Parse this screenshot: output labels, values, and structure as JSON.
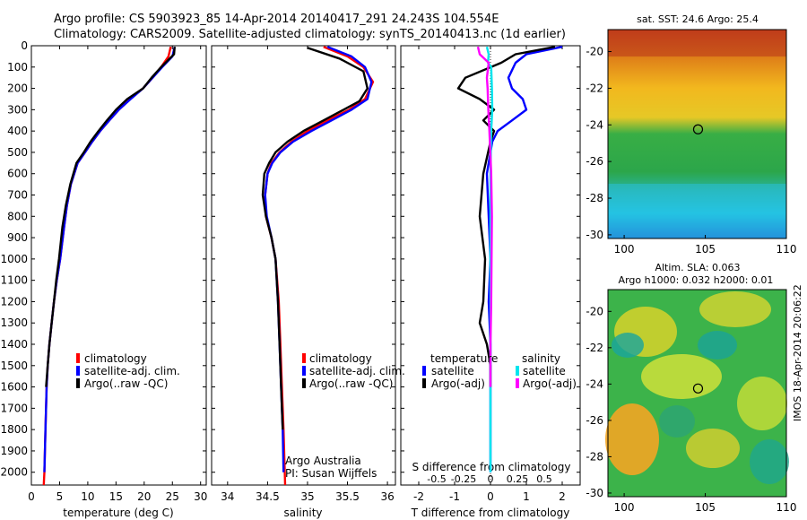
{
  "header": {
    "line1": "Argo profile: CS 5903923_85 14-Apr-2014 20140417_291 24.243S 104.554E",
    "line2": "Climatology: CARS2009. Satellite-adjusted climatology: synTS_20140413.nc (1d earlier)"
  },
  "side_stamp": "IMOS 18-Apr-2014 20:06:22",
  "colors": {
    "climatology": "#ff0000",
    "satellite": "#0000ff",
    "argo": "#000000",
    "sal_satellite": "#00e5ee",
    "sal_argo": "#ff00ff",
    "marker": "#333333"
  },
  "chart_data": [
    {
      "type": "line",
      "panel": "temperature",
      "xlabel": "temperature (deg C)",
      "ylabel": "",
      "xlim": [
        0,
        31
      ],
      "ylim": [
        2060,
        0
      ],
      "y_inverted": true,
      "xticks": [
        0,
        5,
        10,
        15,
        20,
        25,
        30
      ],
      "yticks": [
        0,
        100,
        200,
        300,
        400,
        500,
        600,
        700,
        800,
        900,
        1000,
        1100,
        1200,
        1300,
        1400,
        1500,
        1600,
        1700,
        1800,
        1900,
        2000
      ],
      "legend": [
        "climatology",
        "satellite-adj. clim.",
        "Argo(..raw -QC)"
      ],
      "series": [
        {
          "name": "climatology",
          "color": "#ff0000",
          "x": [
            24.7,
            24.3,
            23.0,
            21.5,
            19.8,
            17.5,
            15.5,
            13.8,
            12.2,
            10.8,
            9.5,
            8.2,
            7.0,
            6.3,
            5.8,
            5.1,
            4.5,
            4.0,
            3.6,
            3.2,
            2.9,
            2.7,
            2.5,
            2.3,
            2.2
          ],
          "y": [
            5,
            50,
            100,
            150,
            200,
            250,
            300,
            350,
            400,
            450,
            500,
            550,
            650,
            750,
            850,
            1000,
            1100,
            1200,
            1300,
            1400,
            1500,
            1600,
            1800,
            2000,
            2060
          ]
        },
        {
          "name": "satellite-adj. clim.",
          "color": "#0000ff",
          "x": [
            25.4,
            25.0,
            23.2,
            21.5,
            19.8,
            17.6,
            15.5,
            13.8,
            12.2,
            10.8,
            9.5,
            8.2,
            7.0,
            6.3,
            5.8,
            5.1,
            4.5,
            4.0,
            3.6,
            3.2,
            2.9,
            2.7,
            2.5,
            2.3
          ],
          "y": [
            5,
            50,
            100,
            150,
            200,
            250,
            300,
            350,
            400,
            450,
            500,
            550,
            650,
            750,
            850,
            1000,
            1100,
            1200,
            1300,
            1400,
            1500,
            1600,
            1800,
            2000
          ]
        },
        {
          "name": "Argo(..raw -QC)",
          "color": "#000000",
          "x": [
            25.4,
            25.3,
            23.0,
            21.3,
            19.8,
            17.0,
            15.0,
            13.4,
            11.9,
            10.5,
            9.3,
            8.0,
            6.9,
            6.1,
            5.5,
            4.9,
            4.4,
            4.0,
            3.6,
            3.2,
            2.9,
            2.6
          ],
          "y": [
            5,
            40,
            100,
            150,
            200,
            250,
            300,
            350,
            400,
            450,
            500,
            550,
            650,
            750,
            850,
            1000,
            1100,
            1200,
            1300,
            1400,
            1500,
            1600
          ]
        }
      ]
    },
    {
      "type": "line",
      "panel": "salinity",
      "xlabel": "salinity",
      "xlim": [
        33.8,
        36.1
      ],
      "ylim": [
        2060,
        0
      ],
      "y_inverted": true,
      "xticks": [
        34,
        34.5,
        35,
        35.5,
        36
      ],
      "legend": [
        "climatology",
        "satellite-adj. clim.",
        "Argo(..raw -QC)"
      ],
      "annotation": [
        "Argo Australia",
        "PI: Susan Wijffels"
      ],
      "series": [
        {
          "name": "climatology",
          "color": "#ff0000",
          "x": [
            35.2,
            35.5,
            35.7,
            35.82,
            35.72,
            35.52,
            35.25,
            35.0,
            34.8,
            34.65,
            34.55,
            34.5,
            34.47,
            34.48,
            34.55,
            34.6,
            34.64,
            34.66,
            34.68,
            34.7,
            34.72
          ],
          "y": [
            5,
            50,
            100,
            170,
            250,
            300,
            350,
            400,
            450,
            500,
            550,
            600,
            700,
            800,
            900,
            1000,
            1200,
            1400,
            1600,
            1800,
            2060
          ]
        },
        {
          "name": "satellite-adj. clim.",
          "color": "#0000ff",
          "x": [
            35.25,
            35.55,
            35.72,
            35.8,
            35.75,
            35.55,
            35.3,
            35.05,
            34.82,
            34.66,
            34.56,
            34.5,
            34.47,
            34.49,
            34.55,
            34.6,
            34.63,
            34.65,
            34.67,
            34.69,
            34.7
          ],
          "y": [
            5,
            50,
            100,
            170,
            250,
            300,
            350,
            400,
            450,
            500,
            550,
            600,
            700,
            800,
            900,
            1000,
            1200,
            1400,
            1600,
            1800,
            2000
          ]
        },
        {
          "name": "Argo(..raw -QC)",
          "color": "#000000",
          "x": [
            35.0,
            35.4,
            35.7,
            35.75,
            35.65,
            35.45,
            35.2,
            34.95,
            34.75,
            34.6,
            34.52,
            34.46,
            34.44,
            34.48,
            34.55,
            34.6,
            34.63,
            34.65,
            34.67,
            34.69
          ],
          "y": [
            10,
            60,
            120,
            200,
            260,
            300,
            350,
            400,
            450,
            500,
            550,
            600,
            700,
            800,
            900,
            1000,
            1200,
            1400,
            1600,
            1800
          ]
        }
      ]
    },
    {
      "type": "line",
      "panel": "difference",
      "xlabel": "T difference from climatology",
      "xlabel_top": "S difference from climatology",
      "xlim": [
        -2.5,
        2.5
      ],
      "ylim": [
        2060,
        0
      ],
      "y_inverted": true,
      "xticks": [
        -2,
        -1,
        0,
        1,
        2
      ],
      "xticks_top": [
        -0.5,
        -0.25,
        0,
        0.25,
        0.5
      ],
      "legend_left_title": "temperature",
      "legend_left": [
        "satellite",
        "Argo(-adj)"
      ],
      "legend_right_title": "salinity",
      "legend_right": [
        "satellite",
        "Argo(-adj)"
      ],
      "series": [
        {
          "name": "temperature satellite",
          "color": "#0000ff",
          "axis": "T",
          "x": [
            2.0,
            1.0,
            0.7,
            0.5,
            0.6,
            0.9,
            1.0,
            0.6,
            0.2,
            0.05,
            -0.1,
            -0.05,
            0.0,
            -0.05,
            0.0,
            0.0,
            0.0,
            0.0,
            0.0
          ],
          "y": [
            5,
            40,
            80,
            150,
            200,
            250,
            300,
            350,
            400,
            450,
            600,
            800,
            1000,
            1200,
            1400,
            1600,
            1800,
            1950,
            2000
          ]
        },
        {
          "name": "temperature Argo(-adj)",
          "color": "#000000",
          "axis": "T",
          "x": [
            1.8,
            0.7,
            0.3,
            -0.7,
            -0.9,
            -0.3,
            0.1,
            -0.2,
            0.1,
            0.0,
            -0.2,
            -0.3,
            -0.15,
            -0.2,
            -0.3,
            -0.1,
            0.0,
            0.0,
            0.0
          ],
          "y": [
            5,
            40,
            80,
            150,
            200,
            250,
            300,
            350,
            400,
            450,
            600,
            800,
            1000,
            1200,
            1300,
            1400,
            1500,
            1550,
            1600
          ]
        },
        {
          "name": "salinity satellite",
          "color": "#00e5ee",
          "axis": "S",
          "x": [
            -0.1,
            -0.05,
            -0.07,
            0.02,
            0.04,
            0.05,
            0.02,
            0.01,
            0.0,
            0.0,
            0.0,
            0.0,
            0.0
          ],
          "y": [
            5,
            40,
            80,
            100,
            200,
            300,
            400,
            500,
            600,
            800,
            1000,
            1500,
            2000
          ]
        },
        {
          "name": "salinity Argo(-adj)",
          "color": "#ff00ff",
          "axis": "S",
          "x": [
            -0.35,
            -0.3,
            -0.05,
            -0.1,
            -0.08,
            -0.06,
            -0.03,
            0.02,
            0.04,
            0.03,
            0.02,
            0.0,
            0.0
          ],
          "y": [
            5,
            40,
            80,
            150,
            200,
            300,
            400,
            600,
            800,
            1000,
            1200,
            1400,
            1600
          ]
        }
      ]
    },
    {
      "type": "heatmap",
      "panel": "sst_map",
      "title": "sat. SST: 24.6 Argo: 25.4",
      "xlim": [
        99,
        110
      ],
      "ylim": [
        -30.2,
        -18.8
      ],
      "xticks": [
        100,
        105,
        110
      ],
      "yticks": [
        -20,
        -22,
        -24,
        -26,
        -28,
        -30
      ],
      "marker": {
        "lon": 104.554,
        "lat": -24.243
      }
    },
    {
      "type": "heatmap",
      "panel": "sla_map",
      "title": "Altim. SLA: 0.063",
      "subtitle": "Argo h1000: 0.032 h2000: 0.01",
      "xlim": [
        99,
        110
      ],
      "ylim": [
        -30.2,
        -18.8
      ],
      "xticks": [
        100,
        105,
        110
      ],
      "yticks": [
        -20,
        -22,
        -24,
        -26,
        -28,
        -30
      ],
      "marker": {
        "lon": 104.554,
        "lat": -24.243
      }
    }
  ]
}
